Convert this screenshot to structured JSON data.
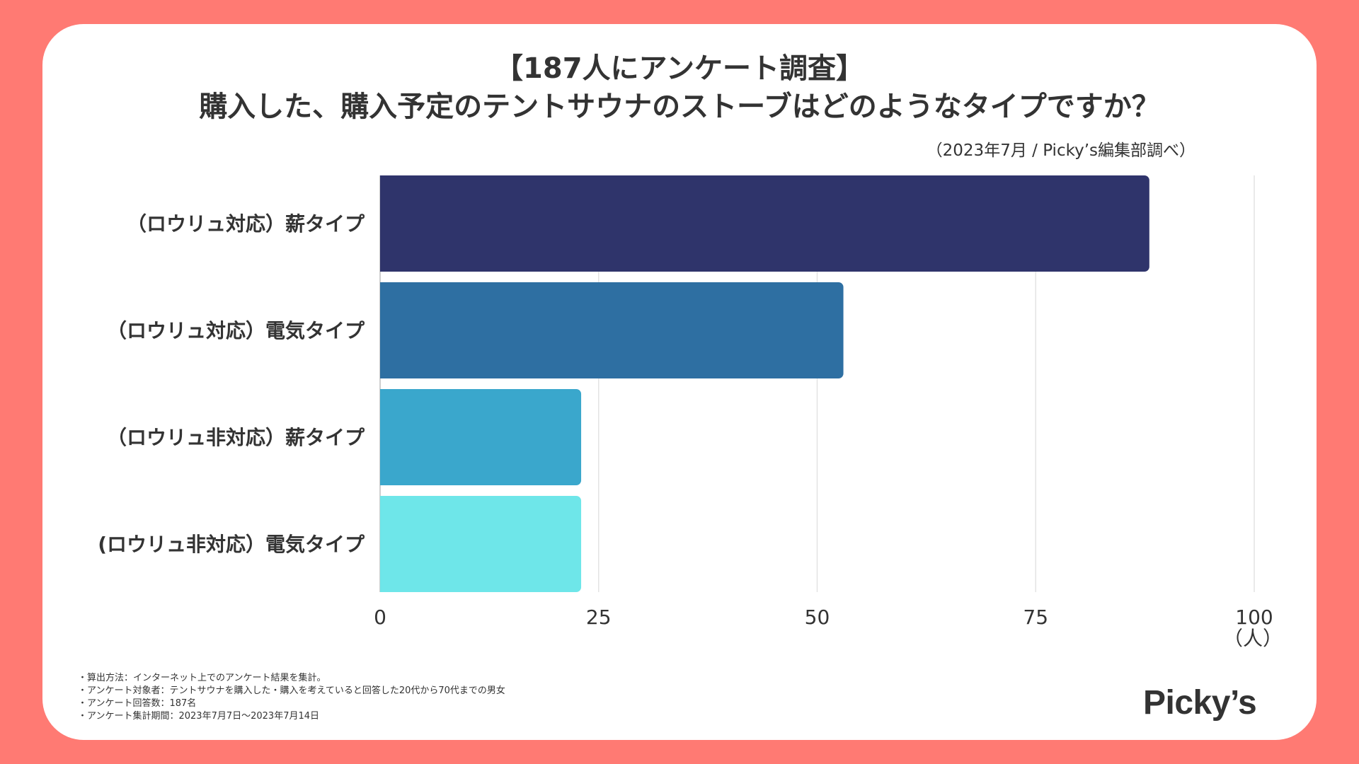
{
  "header": {
    "title_line1": "【187人にアンケート調査】",
    "title_line2": "購入した、購入予定のテントサウナのストーブはどのようなタイプですか？",
    "source": "（2023年7月 / Picky’s編集部調べ）"
  },
  "chart_data": {
    "type": "bar",
    "orientation": "horizontal",
    "categories": [
      "（ロウリュ対応）薪タイプ",
      "（ロウリュ対応）電気タイプ",
      "（ロウリュ非対応）薪タイプ",
      "(ロウリュ非対応）電気タイプ"
    ],
    "values": [
      88,
      53,
      23,
      23
    ],
    "colors": [
      "#2f346b",
      "#2e6fa2",
      "#3aa7cc",
      "#6ee6e9"
    ],
    "xlim": [
      0,
      100
    ],
    "xticks": [
      "0",
      "25",
      "50",
      "75",
      "100"
    ],
    "xticks_values": [
      0,
      25,
      50,
      75,
      100
    ],
    "unit_label": "（人）",
    "grid": true,
    "title": "購入した、購入予定のテントサウナのストーブはどのようなタイプですか？"
  },
  "footnotes": [
    "・算出方法：インターネット上でのアンケート結果を集計。",
    "・アンケート対象者：テントサウナを購入した・購入を考えていると回答した20代から70代までの男女",
    "・アンケート回答数：187名",
    "・アンケート集計期間：2023年7月7日〜2023年7月14日"
  ],
  "brand": {
    "logo_text": "Picky’s",
    "background": "#ff7a73"
  }
}
